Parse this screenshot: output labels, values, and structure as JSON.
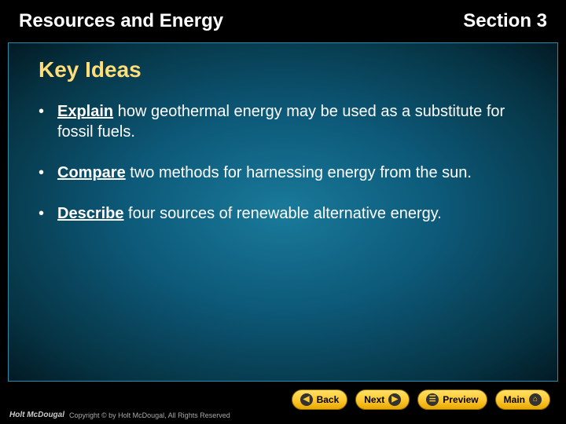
{
  "header": {
    "title": "Resources and Energy",
    "section": "Section 3"
  },
  "content": {
    "heading": "Key Ideas",
    "heading_color": "#ffde7a",
    "bullets": [
      {
        "keyword": "Explain",
        "rest": " how geothermal energy may be used as a substitute for fossil fuels."
      },
      {
        "keyword": "Compare",
        "rest": " two methods for harnessing energy from the sun."
      },
      {
        "keyword": "Describe",
        "rest": " four sources of renewable alternative energy."
      }
    ]
  },
  "nav": {
    "back": "Back",
    "next": "Next",
    "preview": "Preview",
    "main": "Main"
  },
  "footer": {
    "logo": "Holt McDougal",
    "copy": "Copyright © by Holt McDougal, All Rights Reserved"
  },
  "colors": {
    "bg_gradient_center": "#1a7a9a",
    "bg_gradient_edge": "#021a24",
    "nav_btn_top": "#ffe066",
    "nav_btn_bottom": "#e6a800"
  }
}
